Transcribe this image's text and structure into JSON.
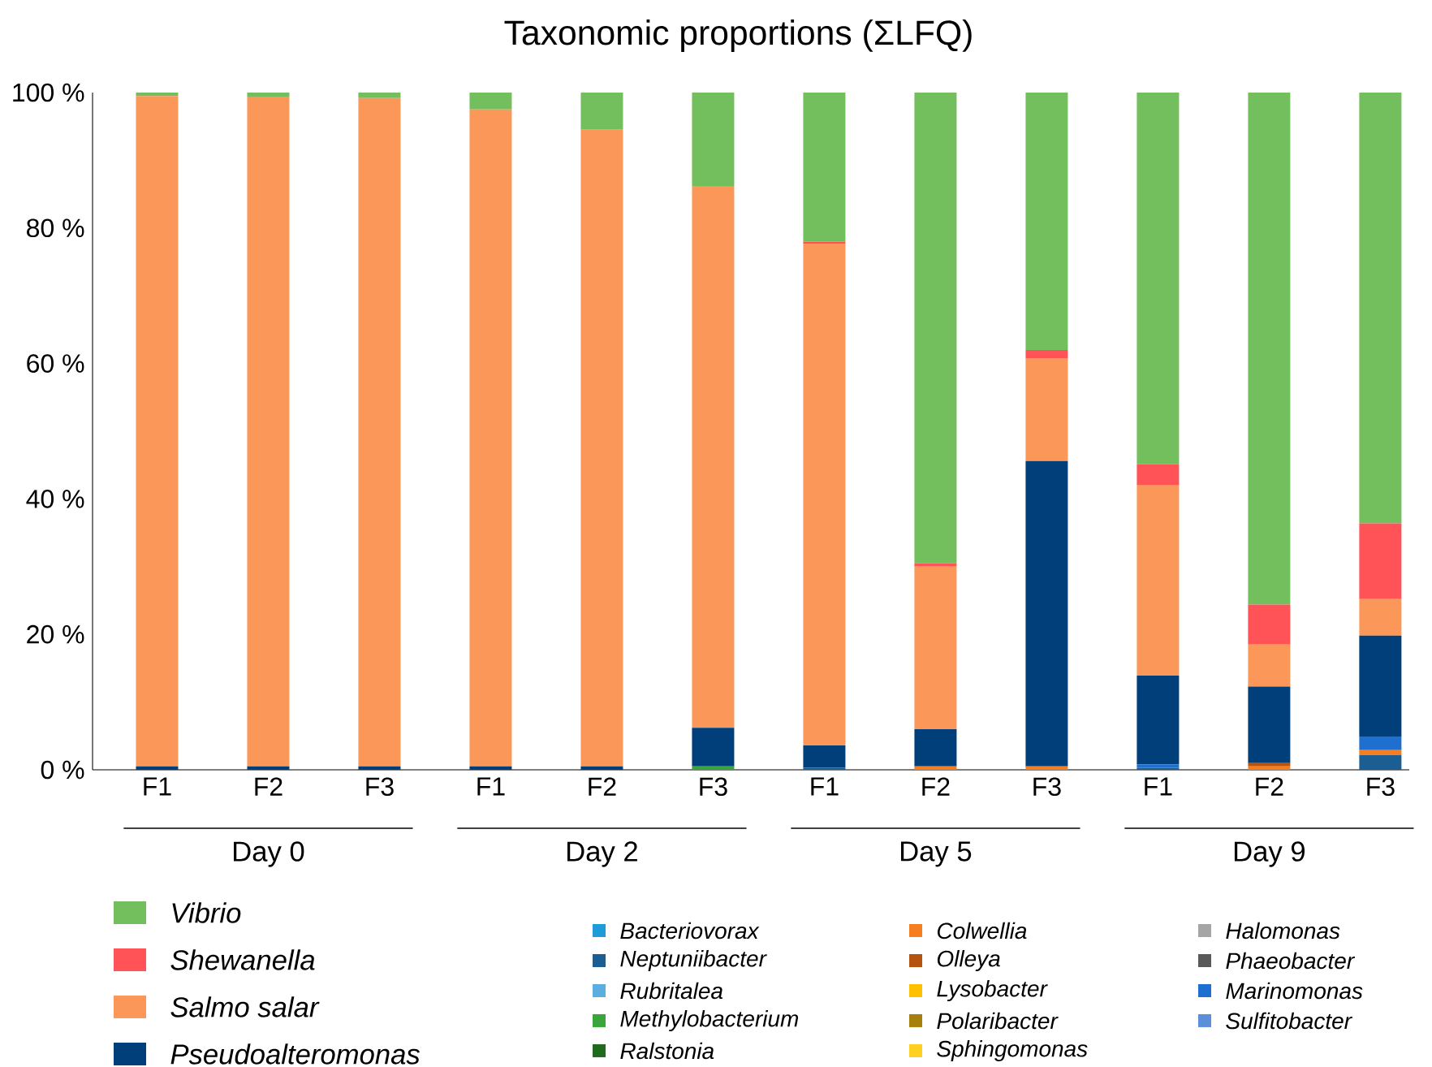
{
  "chart_data": {
    "type": "bar",
    "stacked": true,
    "title": "Taxonomic proportions (ΣLFQ)",
    "categories": [
      "F1",
      "F2",
      "F3",
      "F1",
      "F2",
      "F3",
      "F1",
      "F2",
      "F3",
      "F1",
      "F2",
      "F3"
    ],
    "annotations": [
      "Day 0",
      "Day 2",
      "Day 5",
      "Day 9"
    ],
    "ylim": [
      0,
      100
    ],
    "yticks": [
      {
        "value": 0,
        "label": "0 %"
      },
      {
        "value": 20,
        "label": "20 %"
      },
      {
        "value": 40,
        "label": "40 %"
      },
      {
        "value": 60,
        "label": "60 %"
      },
      {
        "value": 80,
        "label": "80 %"
      },
      {
        "value": 100,
        "label": "100 %"
      }
    ],
    "legend": "bottom",
    "series": [
      {
        "name": "Bacteriovorax",
        "color": "#1f9bd7",
        "values": [
          0,
          0,
          0,
          0,
          0,
          0,
          0,
          0,
          0,
          0,
          0,
          0
        ]
      },
      {
        "name": "Neptuniibacter",
        "color": "#1a5e94",
        "values": [
          0,
          0,
          0,
          0,
          0,
          0,
          0.3,
          0,
          0,
          0.3,
          0,
          2.2
        ]
      },
      {
        "name": "Rubritalea",
        "color": "#5aafe0",
        "values": [
          0,
          0,
          0,
          0,
          0,
          0,
          0,
          0,
          0,
          0,
          0,
          0
        ]
      },
      {
        "name": "Methylobacterium",
        "color": "#3aa53a",
        "values": [
          0,
          0,
          0,
          0,
          0,
          0.5,
          0,
          0,
          0,
          0,
          0,
          0
        ]
      },
      {
        "name": "Ralstonia",
        "color": "#1e6b1e",
        "values": [
          0,
          0,
          0,
          0,
          0,
          0,
          0,
          0,
          0,
          0,
          0,
          0
        ]
      },
      {
        "name": "Colwellia",
        "color": "#f57f20",
        "values": [
          0,
          0,
          0,
          0,
          0,
          0,
          0,
          0.5,
          0.5,
          0,
          0.5,
          0.7
        ]
      },
      {
        "name": "Olleya",
        "color": "#b5530f",
        "values": [
          0,
          0,
          0,
          0,
          0,
          0,
          0,
          0,
          0,
          0,
          0.5,
          0
        ]
      },
      {
        "name": "Lysobacter",
        "color": "#ffc000",
        "values": [
          0,
          0,
          0,
          0,
          0,
          0,
          0,
          0,
          0,
          0,
          0,
          0
        ]
      },
      {
        "name": "Polaribacter",
        "color": "#a6800a",
        "values": [
          0,
          0,
          0,
          0,
          0,
          0,
          0,
          0,
          0,
          0,
          0,
          0
        ]
      },
      {
        "name": "Sphingomonas",
        "color": "#ffd020",
        "values": [
          0,
          0,
          0,
          0,
          0,
          0,
          0,
          0,
          0,
          0,
          0,
          0
        ]
      },
      {
        "name": "Halomonas",
        "color": "#a5a5a5",
        "values": [
          0,
          0,
          0,
          0,
          0,
          0,
          0,
          0,
          0,
          0,
          0,
          0
        ]
      },
      {
        "name": "Phaeobacter",
        "color": "#595959",
        "values": [
          0,
          0,
          0,
          0,
          0,
          0,
          0,
          0,
          0,
          0,
          0,
          0
        ]
      },
      {
        "name": "Marinomonas",
        "color": "#1f6fd0",
        "values": [
          0,
          0,
          0,
          0,
          0,
          0,
          0,
          0,
          0,
          0.5,
          0,
          2.0
        ]
      },
      {
        "name": "Sulfitobacter",
        "color": "#5b8fd8",
        "values": [
          0,
          0,
          0,
          0,
          0,
          0,
          0,
          0,
          0,
          0,
          0,
          0
        ]
      },
      {
        "name": "Pseudoalteromonas",
        "color": "#003f7a",
        "values": [
          0.5,
          0.5,
          0.5,
          0.5,
          0.5,
          5.7,
          3.3,
          5.5,
          45.1,
          13.1,
          11.3,
          14.9
        ]
      },
      {
        "name": "Salmo salar",
        "color": "#fb9859",
        "values": [
          99.0,
          98.9,
          98.7,
          97.0,
          94.0,
          80.0,
          74.1,
          24.0,
          15.2,
          28.1,
          6.2,
          5.4
        ]
      },
      {
        "name": "Shewanella",
        "color": "#ff5358",
        "values": [
          0,
          0,
          0,
          0,
          0,
          0,
          0.3,
          0.5,
          1.2,
          3.1,
          5.9,
          11.2
        ]
      },
      {
        "name": "Vibrio",
        "color": "#74bf5d",
        "values": [
          0.5,
          0.6,
          0.8,
          2.5,
          5.5,
          13.8,
          22.0,
          69.5,
          38.0,
          54.9,
          75.6,
          63.6
        ]
      }
    ]
  }
}
